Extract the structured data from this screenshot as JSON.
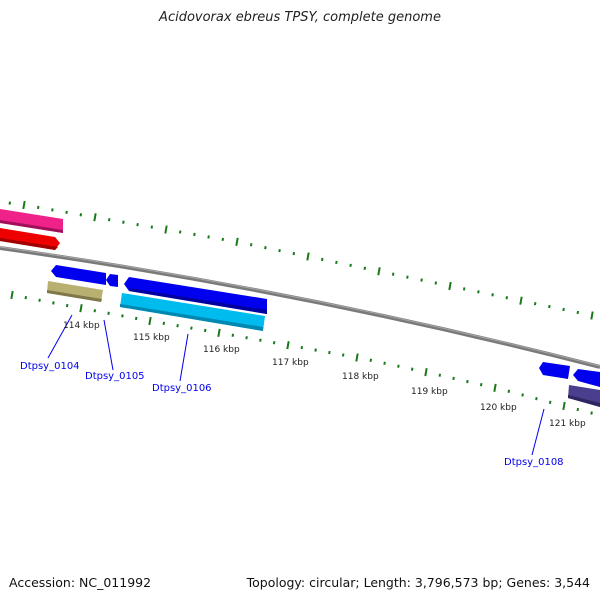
{
  "title": "Acidovorax ebreus TPSY, complete genome",
  "footer": {
    "accession": "Accession: NC_011992",
    "summary": "Topology: circular; Length: 3,796,573 bp; Genes: 3,544"
  },
  "ticks": [
    "114 kbp",
    "115 kbp",
    "116 kbp",
    "117 kbp",
    "118 kbp",
    "119 kbp",
    "120 kbp",
    "121 kbp"
  ],
  "gene_labels": [
    "Dtpsy_0104",
    "Dtpsy_0105",
    "Dtpsy_0106",
    "Dtpsy_0108"
  ],
  "colors": {
    "backbone": "#808080",
    "tick": "#1a7a1a",
    "cds_blue": "#0000ee",
    "pink": "#ee2288",
    "red": "#ee0000",
    "khaki": "#b8b070",
    "cyan": "#00bbee",
    "purple": "#4a3f8f",
    "label": "#0000ee"
  }
}
